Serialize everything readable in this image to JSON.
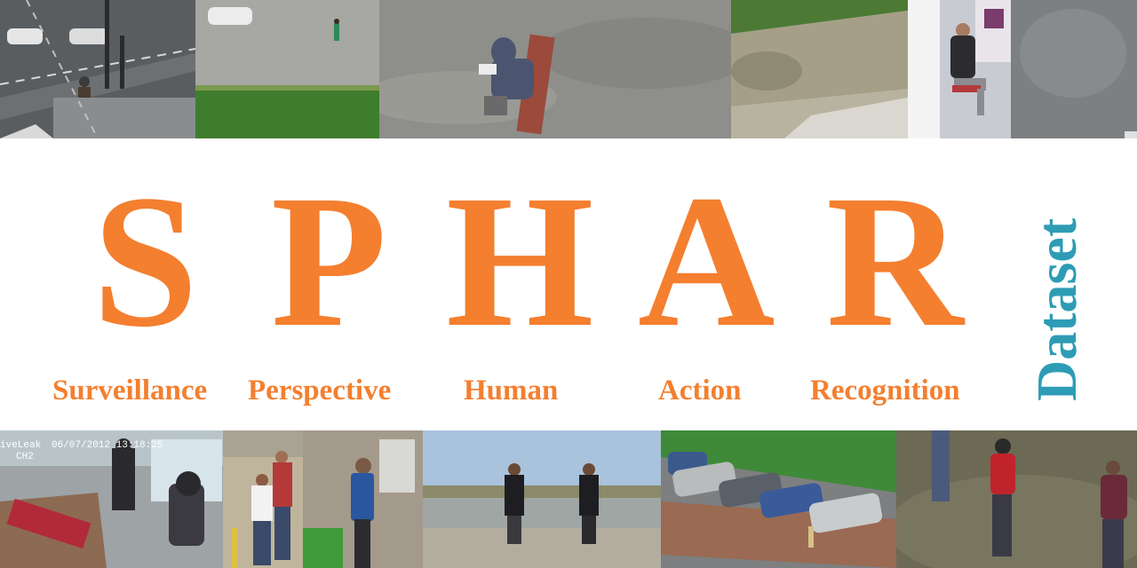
{
  "title": {
    "letters": [
      "S",
      "P",
      "H",
      "A",
      "R"
    ],
    "words": [
      "Surveillance",
      "Perspective",
      "Human",
      "Action",
      "Recognition"
    ],
    "side_label": "Dataset"
  },
  "overlay": {
    "brand": "iveLeak",
    "datetime": "06/07/2012 13:18:25",
    "channel": "CH2"
  },
  "colors": {
    "title_orange": "#f47f2f",
    "dataset_teal": "#2e9cb5",
    "background": "#ffffff"
  }
}
